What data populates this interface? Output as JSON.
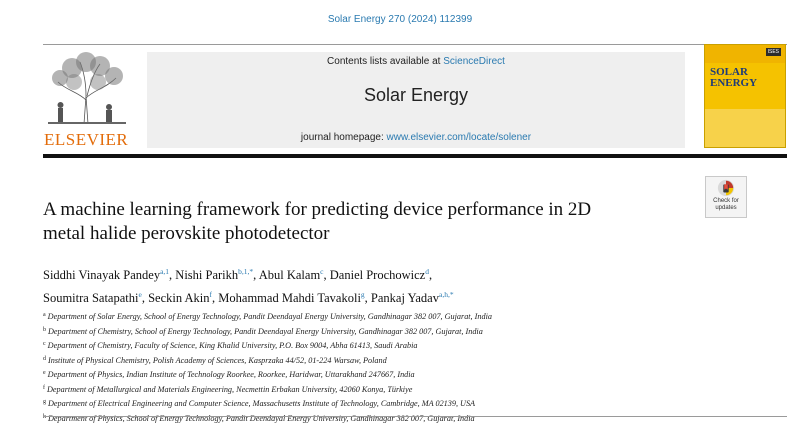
{
  "citation": "Solar Energy 270 (2024) 112399",
  "publisher": "ELSEVIER",
  "masthead": {
    "contents_prefix": "Contents lists available at",
    "contents_link": "ScienceDirect",
    "journal_title": "Solar Energy",
    "homepage_prefix": "journal homepage:",
    "homepage_link": "www.elsevier.com/locate/solener"
  },
  "cover": {
    "title_line1": "SOLAR",
    "title_line2": "ENERGY",
    "badge": "ISES"
  },
  "updates_badge": {
    "line1": "Check for",
    "line2": "updates"
  },
  "article": {
    "title_line1": "A machine learning framework for predicting device performance in 2D",
    "title_line2": "metal halide perovskite photodetector"
  },
  "authors": [
    {
      "name": "Siddhi Vinayak Pandey",
      "sup": "a,1"
    },
    {
      "name": "Nishi Parikh",
      "sup": "b,1,*"
    },
    {
      "name": "Abul Kalam",
      "sup": "c"
    },
    {
      "name": "Daniel Prochowicz",
      "sup": "d"
    },
    {
      "name": "Soumitra Satapathi",
      "sup": "e"
    },
    {
      "name": "Seckin Akin",
      "sup": "f"
    },
    {
      "name": "Mohammad Mahdi Tavakoli",
      "sup": "g"
    },
    {
      "name": "Pankaj Yadav",
      "sup": "a,h,*"
    }
  ],
  "affiliations": [
    {
      "key": "a",
      "text": "Department of Solar Energy, School of Energy Technology, Pandit Deendayal Energy University, Gandhinagar 382 007, Gujarat, India"
    },
    {
      "key": "b",
      "text": "Department of Chemistry, School of Energy Technology, Pandit Deendayal Energy University, Gandhinagar 382 007, Gujarat, India"
    },
    {
      "key": "c",
      "text": "Department of Chemistry, Faculty of Science, King Khalid University, P.O. Box 9004, Abha 61413, Saudi Arabia"
    },
    {
      "key": "d",
      "text": "Institute of Physical Chemistry, Polish Academy of Sciences, Kasprzaka 44/52, 01-224 Warsaw, Poland"
    },
    {
      "key": "e",
      "text": "Department of Physics, Indian Institute of Technology Roorkee, Roorkee, Haridwar, Uttarakhand 247667, India"
    },
    {
      "key": "f",
      "text": "Department of Metallurgical and Materials Engineering, Necmettin Erbakan University, 42060 Konya, Türkiye"
    },
    {
      "key": "g",
      "text": "Department of Electrical Engineering and Computer Science, Massachusetts Institute of Technology, Cambridge, MA 02139, USA"
    },
    {
      "key": "h",
      "text": "Department of Physics, School of Energy Technology, Pandit Deendayal Energy University, Gandhinagar 382 007, Gujarat, India"
    }
  ],
  "colors": {
    "link": "#2a7ab0",
    "publisher": "#e36c0a",
    "cover": "#f5c200"
  }
}
